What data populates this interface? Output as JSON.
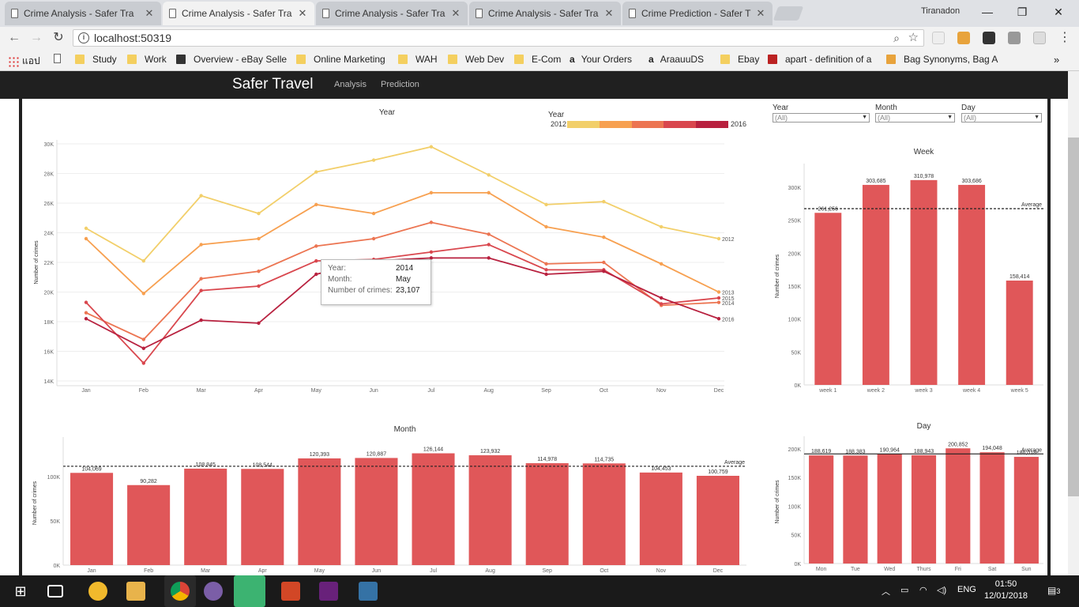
{
  "browser": {
    "tabs": [
      {
        "title": "Crime Analysis - Safer Tra"
      },
      {
        "title": "Crime Analysis - Safer Tra"
      },
      {
        "title": "Crime Analysis - Safer Tra"
      },
      {
        "title": "Crime Analysis - Safer Tra"
      },
      {
        "title": "Crime Prediction - Safer T"
      }
    ],
    "profile": "Tiranadon",
    "url": "localhost:50319",
    "bookmarks": [
      "แอป",
      "Study",
      "Work",
      "Overview - eBay Selle",
      "Online Marketing",
      "WAH",
      "Web Dev",
      "E-Com",
      "Your Orders",
      "AraauuDS",
      "Ebay",
      "apart - definition of a",
      "Bag Synonyms, Bag A"
    ]
  },
  "navbar": {
    "brand": "Safer Travel",
    "links": [
      "Analysis",
      "Prediction"
    ]
  },
  "filters": [
    {
      "label": "Year",
      "value": "(All)"
    },
    {
      "label": "Month",
      "value": "(All)"
    },
    {
      "label": "Day",
      "value": "(All)"
    }
  ],
  "legend": {
    "title": "Year",
    "start": "2012",
    "end": "2016",
    "colors": [
      "#f2cf6a",
      "#f7a050",
      "#ec7552",
      "#d9474e",
      "#b8213f"
    ]
  },
  "tooltip": {
    "rows": [
      {
        "k": "Year:",
        "v": "2014"
      },
      {
        "k": "Month:",
        "v": "May"
      },
      {
        "k": "Number of crimes:",
        "v": "23,107"
      }
    ]
  },
  "chart_data": [
    {
      "type": "line",
      "title": "Year",
      "ylabel": "Number of crimes",
      "categories": [
        "Jan",
        "Feb",
        "Mar",
        "Apr",
        "May",
        "Jun",
        "Jul",
        "Aug",
        "Sep",
        "Oct",
        "Nov",
        "Dec"
      ],
      "ylim": [
        14000,
        30000
      ],
      "yticks": [
        "14K",
        "16K",
        "18K",
        "20K",
        "22K",
        "24K",
        "26K",
        "28K",
        "30K"
      ],
      "series": [
        {
          "name": "2012",
          "color": "#f2cf6a",
          "values": [
            24300,
            22100,
            26500,
            25300,
            28100,
            28900,
            29800,
            27900,
            25900,
            26100,
            24400,
            23600
          ]
        },
        {
          "name": "2013",
          "color": "#f7a050",
          "values": [
            23600,
            19900,
            23200,
            23600,
            25900,
            25300,
            26700,
            26700,
            24400,
            23700,
            21900,
            20000
          ]
        },
        {
          "name": "2014",
          "color": "#ec7552",
          "values": [
            18600,
            16800,
            20900,
            21400,
            23100,
            23600,
            24700,
            23900,
            21900,
            22000,
            19100,
            19300
          ]
        },
        {
          "name": "2015",
          "color": "#d9474e",
          "values": [
            19300,
            15200,
            20100,
            20400,
            22100,
            22200,
            22700,
            23200,
            21500,
            21500,
            19200,
            19600
          ]
        },
        {
          "name": "2016",
          "color": "#b8213f",
          "values": [
            18200,
            16200,
            18100,
            17900,
            21200,
            22100,
            22300,
            22300,
            21200,
            21400,
            19600,
            18200
          ]
        }
      ],
      "end_labels": [
        "2012",
        "2013",
        "2014",
        "2015",
        "2016"
      ]
    },
    {
      "type": "bar",
      "title": "Week",
      "ylabel": "Number of crimes",
      "categories": [
        "week 1",
        "week 2",
        "week 3",
        "week 4",
        "week 5"
      ],
      "values": [
        261256,
        303685,
        310978,
        303686,
        158414
      ],
      "value_labels": [
        "261,256",
        "303,685",
        "310,978",
        "303,686",
        "158,414"
      ],
      "ylim": [
        0,
        330000
      ],
      "yticks": [
        [
          "0K",
          0
        ],
        [
          "50K",
          50000
        ],
        [
          "100K",
          100000
        ],
        [
          "150K",
          150000
        ],
        [
          "200K",
          200000
        ],
        [
          "250K",
          250000
        ],
        [
          "300K",
          300000
        ]
      ],
      "average": 267604,
      "average_label": "Average"
    },
    {
      "type": "bar",
      "title": "Month",
      "ylabel": "Number of crimes",
      "categories": [
        "Jan",
        "Feb",
        "Mar",
        "Apr",
        "May",
        "Jun",
        "Jul",
        "Aug",
        "Sep",
        "Oct",
        "Nov",
        "Dec"
      ],
      "values": [
        104069,
        90282,
        108845,
        108544,
        120393,
        120887,
        126144,
        123932,
        114978,
        114735,
        104453,
        100759
      ],
      "value_labels": [
        "104,069",
        "90,282",
        "108,845",
        "108,544",
        "120,393",
        "120,887",
        "126,144",
        "123,932",
        "114,978",
        "114,735",
        "104,453",
        "100,759"
      ],
      "ylim": [
        0,
        140000
      ],
      "yticks": [
        [
          "0K",
          0
        ],
        [
          "50K",
          50000
        ],
        [
          "100K",
          100000
        ]
      ],
      "average": 111502,
      "average_label": "Average"
    },
    {
      "type": "bar",
      "title": "Day",
      "ylabel": "Number of crimes",
      "categories": [
        "Mon",
        "Tue",
        "Wed",
        "Thurs",
        "Fri",
        "Sat",
        "Sun"
      ],
      "values": [
        188619,
        188383,
        190964,
        188943,
        200852,
        194048,
        186018
      ],
      "value_labels": [
        "188,619",
        "188,383",
        "190,964",
        "188,943",
        "200,852",
        "194,048",
        "186,018"
      ],
      "ylim": [
        0,
        215000
      ],
      "yticks": [
        [
          "0K",
          0
        ],
        [
          "50K",
          50000
        ],
        [
          "100K",
          100000
        ],
        [
          "150K",
          150000
        ],
        [
          "200K",
          200000
        ]
      ],
      "average": 191118,
      "average_label": "Average"
    }
  ],
  "taskbar": {
    "lang": "ENG",
    "time": "01:50",
    "date": "12/01/2018",
    "notif": "3"
  }
}
